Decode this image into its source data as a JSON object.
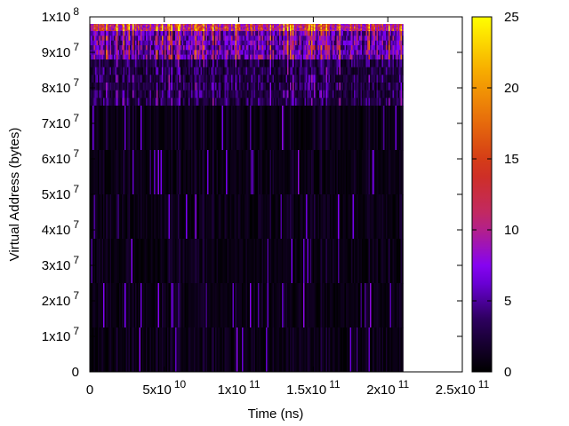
{
  "chart_data": {
    "type": "heatmap",
    "title": "",
    "xlabel": "Time (ns)",
    "ylabel": "Virtual Address (bytes)",
    "xlim": [
      0,
      250000000000
    ],
    "ylim": [
      0,
      100000000
    ],
    "data_extent": {
      "x": [
        0,
        210000000000
      ],
      "y": [
        0,
        98000000
      ]
    },
    "colorbar": {
      "range": [
        0,
        25
      ],
      "ticks": [
        "0",
        "5",
        "10",
        "15",
        "20",
        "25"
      ],
      "tick_values": [
        0,
        5,
        10,
        15,
        20,
        25
      ],
      "colormap": [
        "#000000",
        "#2a0058",
        "#7f00ff",
        "#c0286e",
        "#d0301a",
        "#e8700a",
        "#f8b000",
        "#ffff00"
      ]
    },
    "x_ticks": [
      {
        "value": 0,
        "base": "0",
        "exp": ""
      },
      {
        "value": 50000000000,
        "base": "5x10",
        "exp": "10"
      },
      {
        "value": 100000000000,
        "base": "1x10",
        "exp": "11"
      },
      {
        "value": 150000000000,
        "base": "1.5x10",
        "exp": "11"
      },
      {
        "value": 200000000000,
        "base": "2x10",
        "exp": "11"
      },
      {
        "value": 250000000000,
        "base": "2.5x10",
        "exp": "11"
      }
    ],
    "y_ticks": [
      {
        "value": 0,
        "base": "0",
        "exp": ""
      },
      {
        "value": 10000000,
        "base": "1x10",
        "exp": "7"
      },
      {
        "value": 20000000,
        "base": "2x10",
        "exp": "7"
      },
      {
        "value": 30000000,
        "base": "3x10",
        "exp": "7"
      },
      {
        "value": 40000000,
        "base": "4x10",
        "exp": "7"
      },
      {
        "value": 50000000,
        "base": "5x10",
        "exp": "7"
      },
      {
        "value": 60000000,
        "base": "6x10",
        "exp": "7"
      },
      {
        "value": 70000000,
        "base": "7x10",
        "exp": "7"
      },
      {
        "value": 80000000,
        "base": "8x10",
        "exp": "7"
      },
      {
        "value": 90000000,
        "base": "9x10",
        "exp": "7"
      },
      {
        "value": 100000000,
        "base": "1x10",
        "exp": "8"
      }
    ],
    "bands": [
      {
        "y_range": [
          96000000,
          98000000
        ],
        "intensity": [
          10,
          20
        ]
      },
      {
        "y_range": [
          88000000,
          96000000
        ],
        "intensity": [
          4,
          12
        ]
      },
      {
        "y_range": [
          75000000,
          88000000
        ],
        "intensity": [
          1,
          6
        ]
      },
      {
        "y_range": [
          0,
          75000000
        ],
        "intensity": [
          0,
          2
        ]
      }
    ],
    "grid": false,
    "legend": "colorbar-right"
  }
}
